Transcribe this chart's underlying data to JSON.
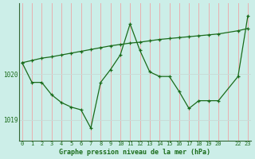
{
  "title": "Graphe pression niveau de la mer (hPa)",
  "background_color": "#cceee8",
  "grid_color_v": "#e8b0b0",
  "grid_color_h": "#c8dcd8",
  "line_color": "#1a6b1a",
  "ylim": [
    1018.55,
    1021.55
  ],
  "yticks": [
    1019.0,
    1020.0
  ],
  "xlim": [
    -0.3,
    23.3
  ],
  "xtick_labels": [
    "0",
    "1",
    "2",
    "3",
    "4",
    "5",
    "6",
    "7",
    "8",
    "9",
    "10",
    "11",
    "12",
    "13",
    "14",
    "15",
    "16",
    "17",
    "18",
    "19",
    "20",
    "",
    "22",
    "23"
  ],
  "xtick_positions": [
    0,
    1,
    2,
    3,
    4,
    5,
    6,
    7,
    8,
    9,
    10,
    11,
    12,
    13,
    14,
    15,
    16,
    17,
    18,
    19,
    20,
    21,
    22,
    23
  ],
  "line1_x": [
    0,
    1,
    2,
    3,
    4,
    5,
    6,
    7,
    8,
    9,
    10,
    11,
    12,
    13,
    14,
    15,
    16,
    17,
    18,
    19,
    20,
    22,
    23
  ],
  "line1_y": [
    1020.25,
    1020.3,
    1020.35,
    1020.38,
    1020.42,
    1020.46,
    1020.5,
    1020.54,
    1020.58,
    1020.62,
    1020.65,
    1020.68,
    1020.7,
    1020.73,
    1020.76,
    1020.78,
    1020.8,
    1020.82,
    1020.84,
    1020.86,
    1020.88,
    1020.95,
    1021.0
  ],
  "line2_x": [
    0,
    1,
    2,
    3,
    4,
    5,
    6,
    7,
    8,
    9,
    10,
    11,
    12,
    13,
    14,
    15,
    16,
    17,
    18,
    19,
    20,
    22,
    23
  ],
  "line2_y": [
    1020.25,
    1019.82,
    1019.82,
    1019.55,
    1019.38,
    1019.28,
    1019.22,
    1018.82,
    1019.82,
    1020.1,
    1020.42,
    1021.1,
    1020.52,
    1020.05,
    1019.95,
    1019.95,
    1019.62,
    1019.25,
    1019.42,
    1019.42,
    1019.42,
    1019.95,
    1021.28
  ]
}
